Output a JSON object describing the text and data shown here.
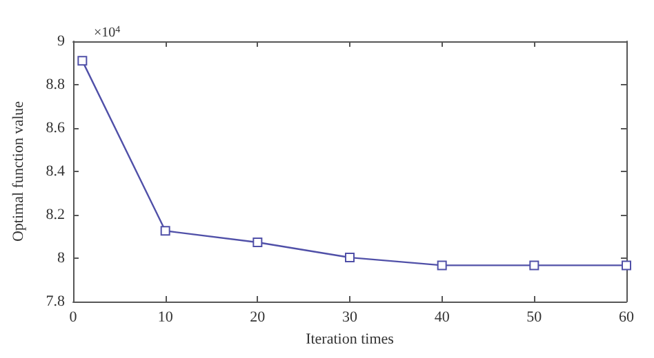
{
  "chart_data": {
    "type": "line",
    "xlabel": "Iteration times",
    "ylabel": "Optimal function value",
    "annotations": [
      "×10$^{4}$"
    ],
    "x": [
      1,
      10,
      20,
      30,
      40,
      50,
      60
    ],
    "series": [
      {
        "color": "#5050a8",
        "values": [
          8.91,
          8.126,
          8.073,
          8.003,
          7.967,
          7.967,
          7.967
        ]
      }
    ],
    "xlim": [
      0,
      60
    ],
    "xticks": [
      0,
      10,
      20,
      30,
      40,
      50,
      60
    ],
    "ylim": [
      7.8,
      9
    ],
    "yticks": [
      7.8,
      8,
      8.2,
      8.4,
      8.6,
      8.8,
      9
    ],
    "grid": false,
    "marker": "square",
    "line_style": "solid"
  }
}
